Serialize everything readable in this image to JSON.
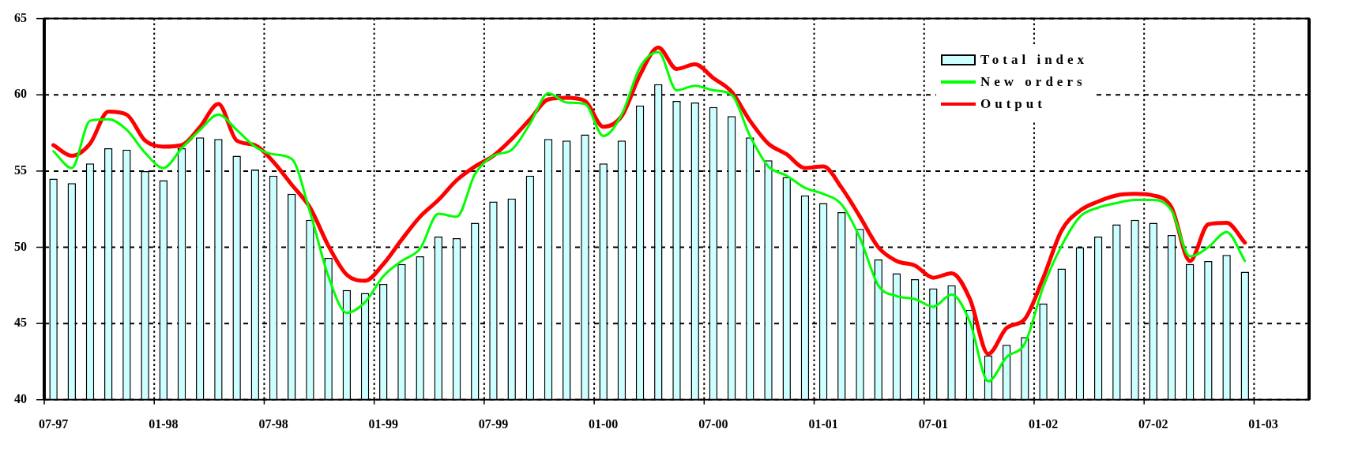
{
  "chart_data": {
    "type": "bar",
    "categories": [
      "07-97",
      null,
      null,
      null,
      null,
      null,
      "01-98",
      null,
      null,
      null,
      null,
      null,
      "07-98",
      null,
      null,
      null,
      null,
      null,
      "01-99",
      null,
      null,
      null,
      null,
      null,
      "07-99",
      null,
      null,
      null,
      null,
      null,
      "01-00",
      null,
      null,
      null,
      null,
      null,
      "07-00",
      null,
      null,
      null,
      null,
      null,
      "01-01",
      null,
      null,
      null,
      null,
      null,
      "07-01",
      null,
      null,
      null,
      null,
      null,
      "01-02",
      null,
      null,
      null,
      null,
      null,
      "07-02",
      null,
      null,
      null,
      null,
      null,
      "01-03",
      null,
      null
    ],
    "series": [
      {
        "name": "Total index",
        "color": "#ccffff",
        "values": [
          54.5,
          54.2,
          55.5,
          56.5,
          56.4,
          55.0,
          54.4,
          56.5,
          57.2,
          57.1,
          56.0,
          55.1,
          54.7,
          53.5,
          51.8,
          49.3,
          47.2,
          47.0,
          47.6,
          48.9,
          49.4,
          50.7,
          50.6,
          51.6,
          53.0,
          53.2,
          54.7,
          57.1,
          57.0,
          57.4,
          55.5,
          57.0,
          59.3,
          60.7,
          59.6,
          59.5,
          59.2,
          58.6,
          57.2,
          55.7,
          54.6,
          53.4,
          52.9,
          52.3,
          51.2,
          49.2,
          48.3,
          47.9,
          47.3,
          47.5,
          45.9,
          42.9,
          43.6,
          44.1,
          46.3,
          48.6,
          50.0,
          50.7,
          51.5,
          51.8,
          51.6,
          50.8,
          48.9,
          49.1,
          49.5,
          48.4,
          null,
          null,
          null
        ]
      },
      {
        "name": "New orders",
        "type": "line",
        "color": "#00ff00",
        "values": [
          56.3,
          55.2,
          58.3,
          58.4,
          57.7,
          56.2,
          55.2,
          56.5,
          57.7,
          58.7,
          57.7,
          56.6,
          56.1,
          55.8,
          52.3,
          48.1,
          45.7,
          46.4,
          48.1,
          49.1,
          49.9,
          52.2,
          52.0,
          54.8,
          56.0,
          56.4,
          58.1,
          60.1,
          59.5,
          59.4,
          57.3,
          58.7,
          61.8,
          62.8,
          60.3,
          60.6,
          60.3,
          60.0,
          57.3,
          55.3,
          54.7,
          53.9,
          53.5,
          52.8,
          50.6,
          47.5,
          46.8,
          46.6,
          46.1,
          46.9,
          45.1,
          41.2,
          42.8,
          43.7,
          47.4,
          50.1,
          52.0,
          52.6,
          52.9,
          53.1,
          53.1,
          52.4,
          49.4,
          50.0,
          51.0,
          49.1,
          null,
          null,
          null
        ]
      },
      {
        "name": "Output",
        "type": "line",
        "color": "#ff0000",
        "values": [
          56.7,
          56.0,
          56.8,
          58.9,
          58.7,
          57.0,
          56.6,
          56.7,
          57.9,
          59.4,
          57.0,
          56.7,
          55.6,
          54.1,
          52.6,
          50.1,
          48.2,
          47.8,
          48.9,
          50.5,
          52.0,
          53.1,
          54.4,
          55.3,
          56.0,
          57.1,
          58.4,
          59.7,
          59.8,
          59.6,
          57.9,
          58.6,
          61.3,
          63.1,
          61.7,
          62.0,
          61.1,
          60.2,
          58.3,
          56.8,
          56.1,
          55.2,
          55.3,
          53.9,
          52.0,
          50.0,
          49.1,
          48.8,
          48.0,
          48.3,
          46.6,
          43.0,
          44.7,
          45.3,
          48.0,
          51.1,
          52.4,
          53.0,
          53.4,
          53.5,
          53.4,
          52.6,
          49.1,
          51.5,
          51.6,
          50.3,
          null,
          null,
          null
        ]
      }
    ],
    "ylim": [
      40,
      65
    ],
    "yticks": [
      40,
      45,
      50,
      55,
      60,
      65
    ],
    "grid": true,
    "legend": "top right"
  }
}
